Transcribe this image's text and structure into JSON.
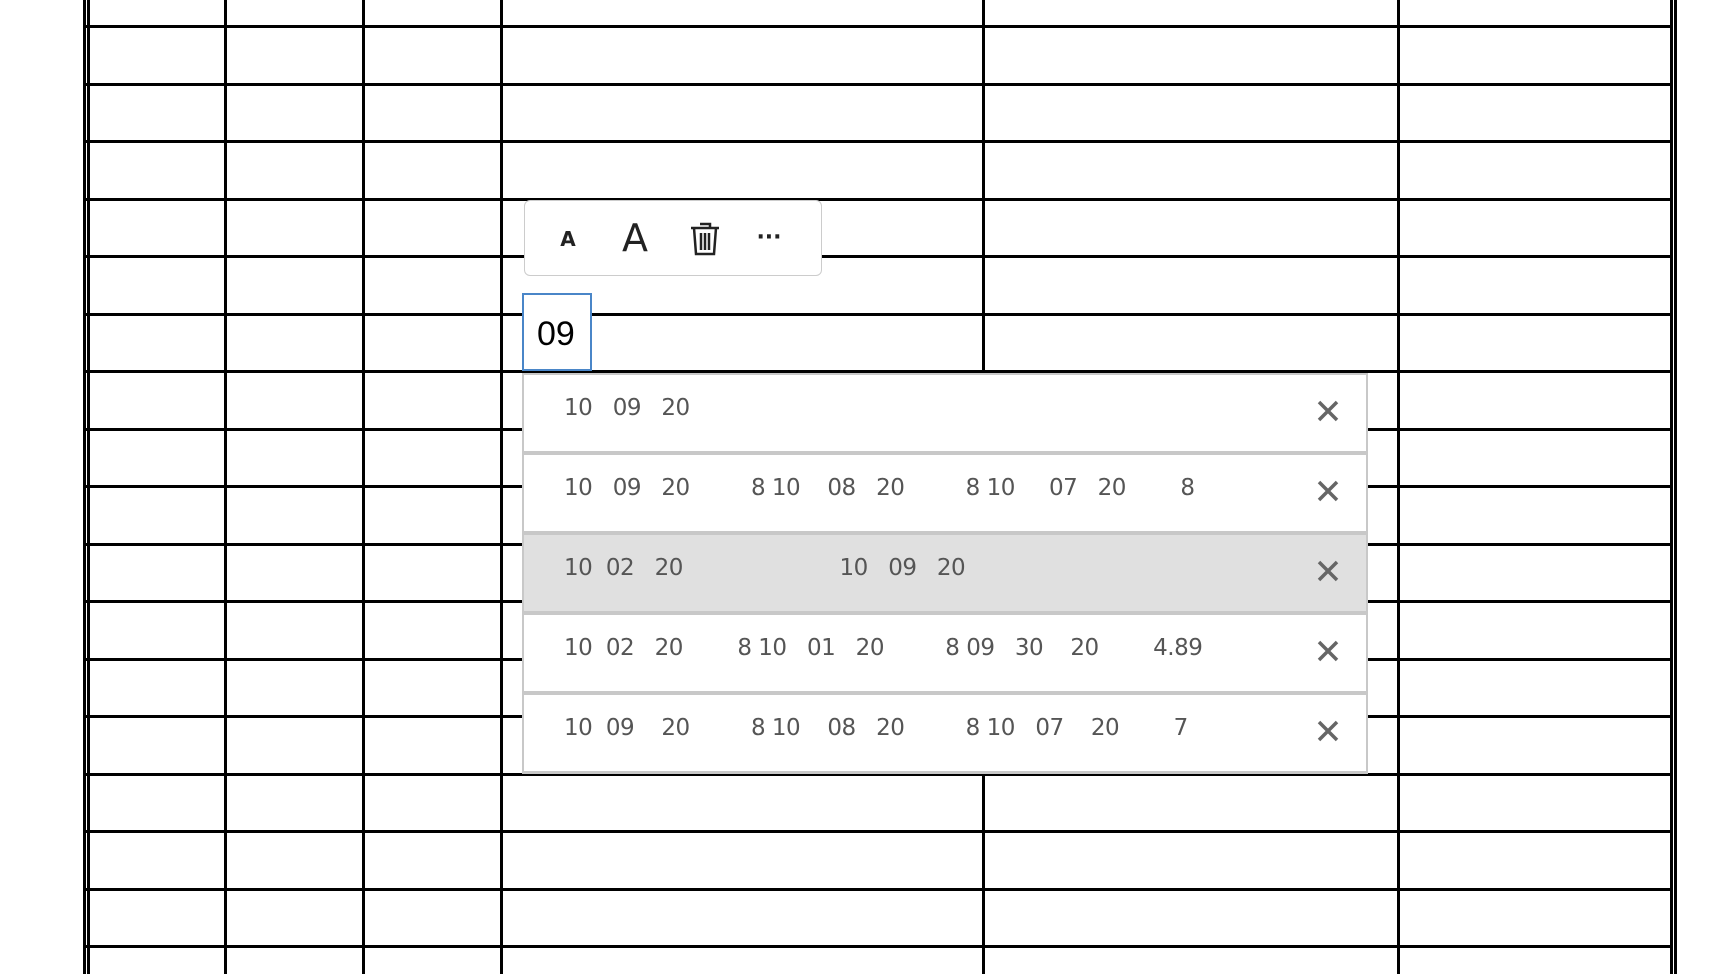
{
  "toolbar": {
    "decrease_font_label": "A",
    "increase_font_label": "A",
    "delete_icon": "trash-icon",
    "more_label": "···"
  },
  "cell_input": {
    "value": "09"
  },
  "suggestions": [
    {
      "text": "10   09   20",
      "highlighted": false
    },
    {
      "text": "10   09   20         8 10    08   20         8 10     07   20        8",
      "highlighted": false
    },
    {
      "text": "10  02   20                       10   09   20",
      "highlighted": true
    },
    {
      "text": "10  02   20        8 10   01   20         8 09   30    20        4.89",
      "highlighted": false
    },
    {
      "text": "10  09    20         8 10    08   20         8 10   07    20        7",
      "highlighted": false
    }
  ],
  "colors": {
    "selection_border": "#4a86c8",
    "highlight_row": "#e0e0e0",
    "suggestion_text": "#555555"
  }
}
